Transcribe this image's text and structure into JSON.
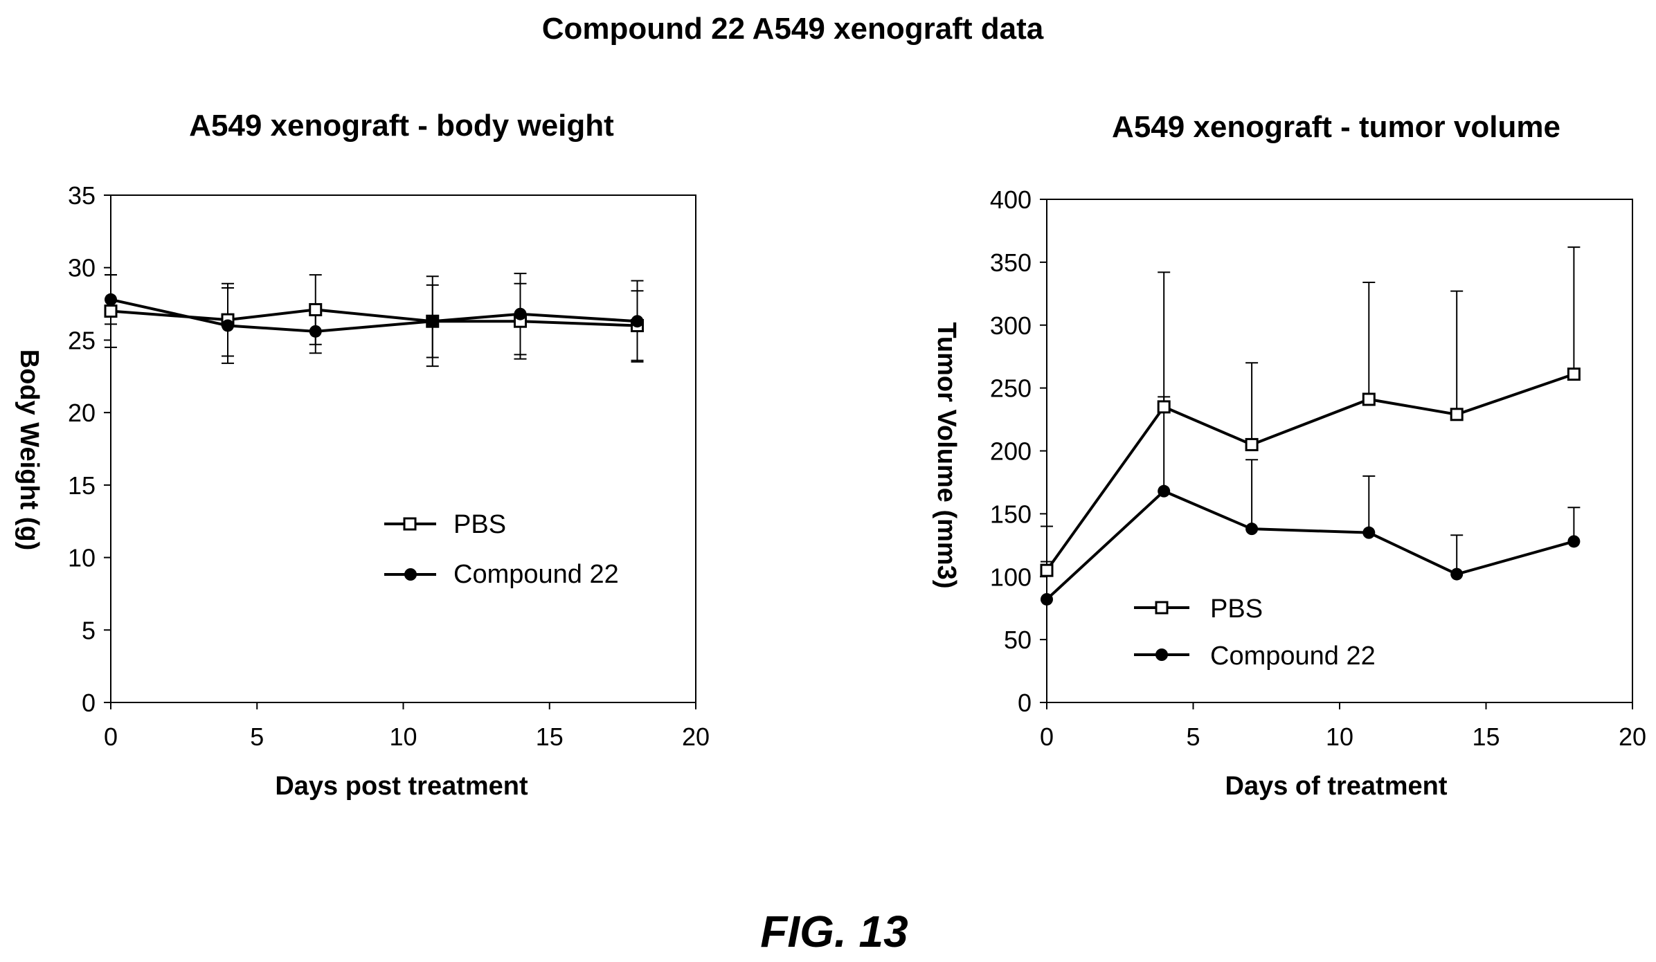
{
  "figure": {
    "main_title": "Compound 22 A549 xenograft data",
    "caption": "FIG.  13"
  },
  "chart_data": [
    {
      "type": "line",
      "title": "A549 xenograft - body weight",
      "xlabel": "Days post treatment",
      "ylabel": "Body Weight (g)",
      "xlim": [
        0,
        20
      ],
      "ylim": [
        0,
        35
      ],
      "xticks": [
        "0",
        "5",
        "10",
        "15",
        "20"
      ],
      "yticks": [
        "0",
        "5",
        "10",
        "15",
        "20",
        "25",
        "30",
        "35"
      ],
      "grid": false,
      "legend_position": "center-right",
      "series": [
        {
          "name": "PBS",
          "marker": "open-square",
          "x": [
            0,
            4,
            7,
            11,
            14,
            18
          ],
          "y": [
            27.0,
            26.4,
            27.1,
            26.3,
            26.3,
            26.0
          ],
          "err": [
            2.5,
            2.5,
            2.4,
            2.5,
            2.6,
            2.4
          ]
        },
        {
          "name": "Compound 22",
          "marker": "filled-circle",
          "x": [
            0,
            4,
            7,
            11,
            14,
            18
          ],
          "y": [
            27.8,
            26.0,
            25.6,
            26.3,
            26.8,
            26.3
          ],
          "err": [
            1.7,
            2.6,
            1.5,
            3.1,
            2.8,
            2.8
          ]
        }
      ]
    },
    {
      "type": "line",
      "title": "A549 xenograft - tumor volume",
      "xlabel": "Days of treatment",
      "ylabel": "Tumor Volume (mm3)",
      "xlim": [
        0,
        20
      ],
      "ylim": [
        0,
        400
      ],
      "xticks": [
        "0",
        "5",
        "10",
        "15",
        "20"
      ],
      "yticks": [
        "0",
        "50",
        "100",
        "150",
        "200",
        "250",
        "300",
        "350",
        "400"
      ],
      "grid": false,
      "legend_position": "bottom-left",
      "series": [
        {
          "name": "PBS",
          "marker": "open-square",
          "x": [
            0,
            4,
            7,
            11,
            14,
            18
          ],
          "y": [
            105,
            235,
            205,
            241,
            229,
            261
          ],
          "err": [
            35,
            107,
            65,
            93,
            98,
            101
          ]
        },
        {
          "name": "Compound 22",
          "marker": "filled-circle",
          "x": [
            0,
            4,
            7,
            11,
            14,
            18
          ],
          "y": [
            82,
            168,
            138,
            135,
            102,
            128
          ],
          "err": [
            30,
            75,
            55,
            45,
            31,
            27
          ]
        }
      ]
    }
  ]
}
